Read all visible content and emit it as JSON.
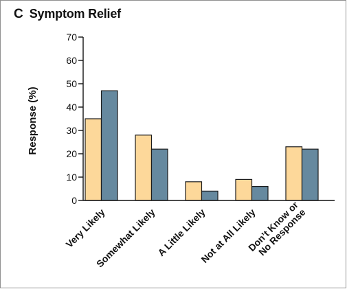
{
  "panel": {
    "letter": "C",
    "title": "Symptom Relief"
  },
  "chart_data": {
    "type": "bar",
    "title": "Symptom Relief",
    "ylabel": "Response (%)",
    "xlabel": "",
    "ylim": [
      0,
      70
    ],
    "yticks": [
      0,
      10,
      20,
      30,
      40,
      50,
      60,
      70
    ],
    "categories": [
      [
        "Very Likely"
      ],
      [
        "Somewhat Likely"
      ],
      [
        "A Little Likely"
      ],
      [
        "Not at All Likely"
      ],
      [
        "Don’t Know or",
        "No Response"
      ]
    ],
    "series": [
      {
        "values": [
          35,
          28,
          8,
          9,
          23
        ],
        "color": "#fdd89a"
      },
      {
        "values": [
          47,
          22,
          4,
          6,
          22
        ],
        "color": "#66899f"
      }
    ],
    "grid": false,
    "legend": "none"
  }
}
